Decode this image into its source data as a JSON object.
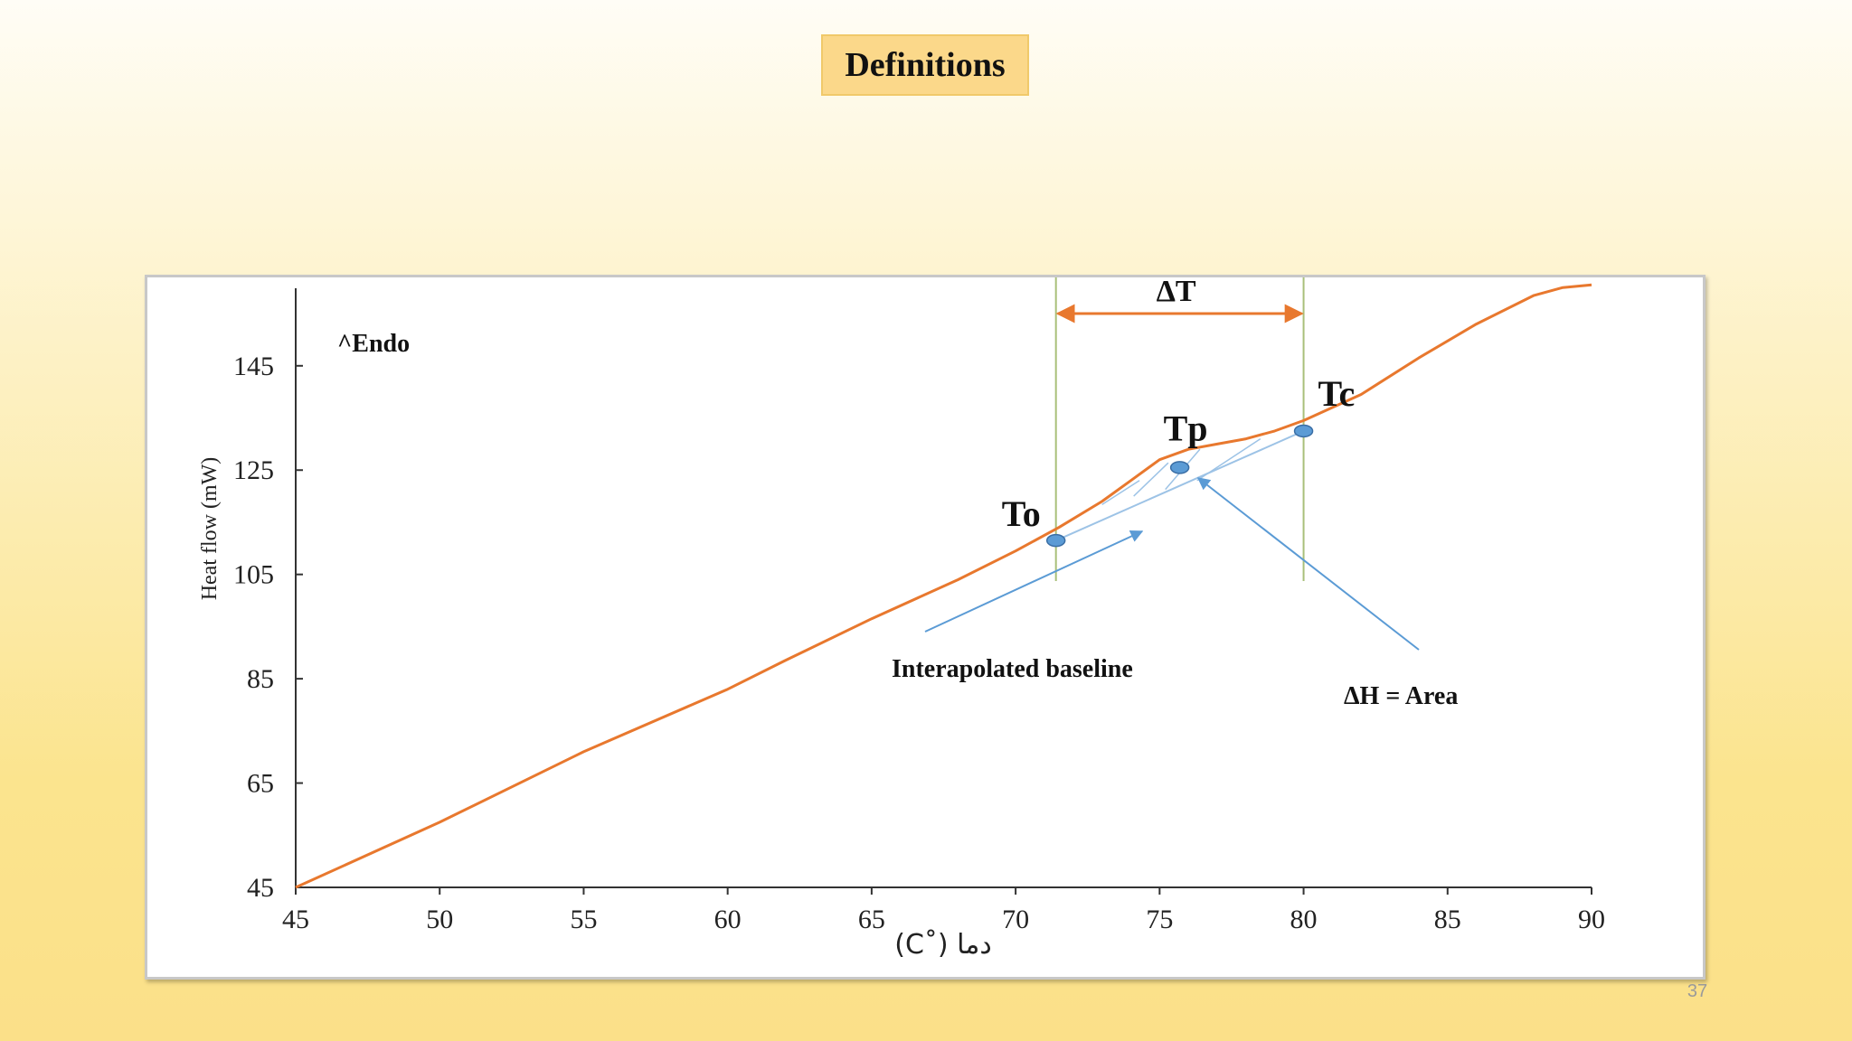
{
  "slide": {
    "title": "Definitions",
    "page_number": "37"
  },
  "chart_data": {
    "type": "line",
    "title": "",
    "xlabel": "دما (˚C)",
    "ylabel": "Heat flow (mW)",
    "xlim": [
      45,
      90
    ],
    "ylim": [
      45,
      160
    ],
    "x_ticks": [
      45,
      50,
      55,
      60,
      65,
      70,
      75,
      80,
      85,
      90
    ],
    "y_ticks": [
      45,
      65,
      85,
      105,
      125,
      145
    ],
    "grid": false,
    "series": [
      {
        "color": "#e8782e",
        "x": [
          45,
          50,
          55,
          60,
          62,
          65,
          68,
          70,
          71.5,
          73,
          74,
          75,
          76,
          77,
          78,
          79,
          80,
          82,
          84,
          86,
          88,
          89,
          90
        ],
        "y": [
          45,
          57.5,
          71,
          83,
          88.5,
          96.5,
          104,
          109.5,
          114,
          119,
          123,
          127,
          129,
          130,
          131,
          132.5,
          134.5,
          139.5,
          146.5,
          153,
          158.5,
          160,
          160.5
        ]
      }
    ],
    "points": [
      {
        "label": "To",
        "x": 71.4,
        "y": 111.5
      },
      {
        "label": "Tp",
        "x": 75.7,
        "y": 125.5
      },
      {
        "label": "Tc",
        "x": 80.0,
        "y": 132.5
      }
    ],
    "annotations": {
      "endo": "^Endo",
      "delta_t": "ΔT",
      "baseline": "Interapolated baseline",
      "delta_h": "ΔH = Area"
    },
    "colors": {
      "curve": "#e8782e",
      "markers": "#5b9bd5",
      "baseline": "#9dc3e6",
      "vertical_lines": "#a9c07a",
      "delta_t_arrow": "#e8782e",
      "pointer_arrows": "#5b9bd5"
    }
  }
}
